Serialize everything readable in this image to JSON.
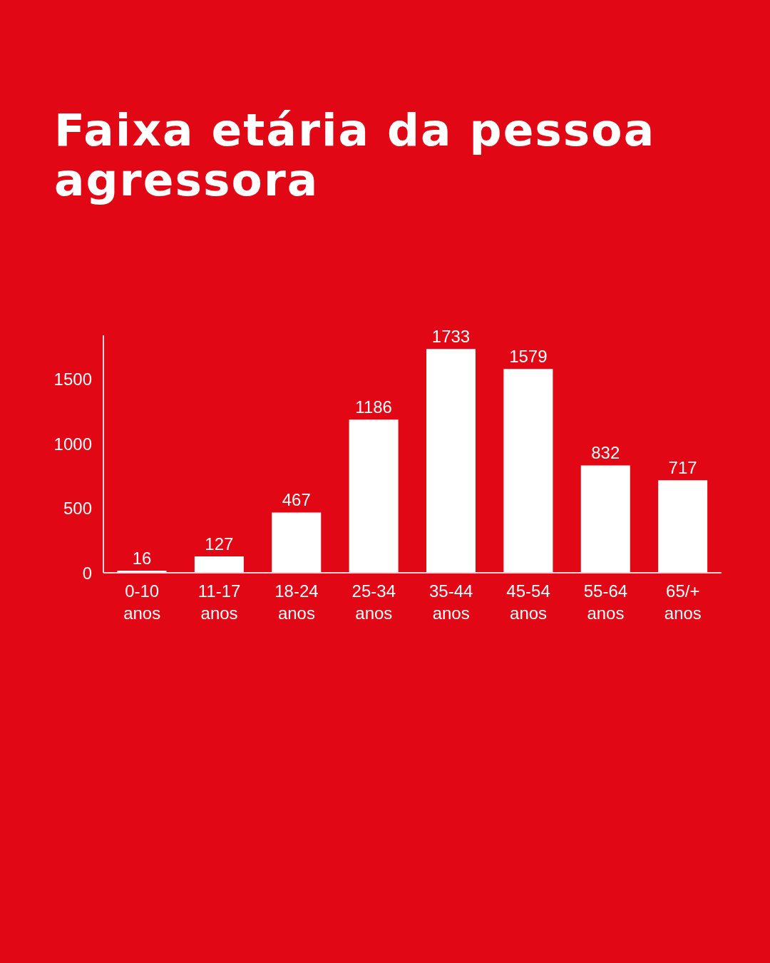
{
  "chart_data": {
    "type": "bar",
    "title": "Faixa etária da pessoa agressora",
    "categories": [
      "0-10 anos",
      "11-17 anos",
      "18-24 anos",
      "25-34 anos",
      "35-44 anos",
      "45-54 anos",
      "55-64 anos",
      "65/+ anos"
    ],
    "values": [
      16,
      127,
      467,
      1186,
      1733,
      1579,
      832,
      717
    ],
    "color": "#ffffff",
    "ylim": [
      0,
      1840
    ],
    "yticks": [
      0,
      500,
      1000,
      1500
    ],
    "data_labels": true
  }
}
